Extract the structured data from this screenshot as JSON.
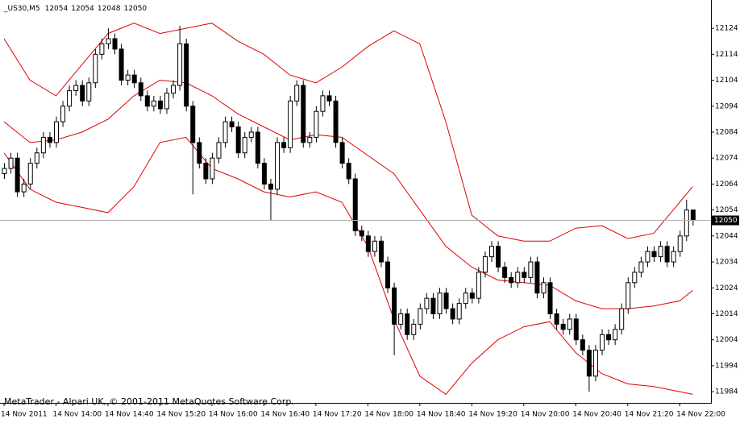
{
  "chart_data": {
    "type": "candlestick",
    "title": "_US30,M5",
    "footer": "MetaTrader - Alpari UK, © 2001-2011 MetaQuotes Software Corp.",
    "up_color": "#ffffff",
    "down_color": "#000000",
    "ylim": [
      11979.7,
      12134.9
    ],
    "yticks": [
      12124,
      12114,
      12104,
      12094,
      12084,
      12074,
      12064,
      12054,
      12044,
      12034,
      12024,
      12014,
      12004,
      11994,
      11984
    ],
    "categories": [
      "14 Nov 2011",
      null,
      null,
      null,
      null,
      null,
      null,
      null,
      "14 Nov 14:00",
      null,
      null,
      null,
      null,
      null,
      null,
      null,
      "14 Nov 14:40",
      null,
      null,
      null,
      null,
      null,
      null,
      null,
      "14 Nov 15:20",
      null,
      null,
      null,
      null,
      null,
      null,
      null,
      "14 Nov 16:00",
      null,
      null,
      null,
      null,
      null,
      null,
      null,
      "14 Nov 16:40",
      null,
      null,
      null,
      null,
      null,
      null,
      null,
      "14 Nov 17:20",
      null,
      null,
      null,
      null,
      null,
      null,
      null,
      "14 Nov 18:00",
      null,
      null,
      null,
      null,
      null,
      null,
      null,
      "14 Nov 18:40",
      null,
      null,
      null,
      null,
      null,
      null,
      null,
      "14 Nov 19:20",
      null,
      null,
      null,
      null,
      null,
      null,
      null,
      "14 Nov 20:00",
      null,
      null,
      null,
      null,
      null,
      null,
      null,
      "14 Nov 20:40",
      null,
      null,
      null,
      null,
      null,
      null,
      null,
      "14 Nov 21:20",
      null,
      null,
      null,
      null,
      null,
      null,
      null,
      "14 Nov 22:00",
      null,
      null
    ],
    "open": [
      12068,
      12070,
      12074,
      12061,
      12064,
      12072,
      12076,
      12082,
      12080,
      12088,
      12094,
      12100,
      12102,
      12096,
      12103,
      12114,
      12118,
      12120,
      12116,
      12104,
      12106,
      12103,
      12098,
      12094,
      12096,
      12093,
      12099,
      12102,
      12118,
      12094,
      12080,
      12072,
      12066,
      12074,
      12080,
      12088,
      12086,
      12076,
      12082,
      12084,
      12072,
      12064,
      12062,
      12080,
      12078,
      12096,
      12102,
      12080,
      12082,
      12092,
      12098,
      12096,
      12080,
      12072,
      12066,
      12046,
      12044,
      12038,
      12042,
      12034,
      12024,
      12010,
      12014,
      12006,
      12010,
      12016,
      12020,
      12014,
      12022,
      12016,
      12012,
      12018,
      12022,
      12020,
      12030,
      12036,
      12040,
      12032,
      12028,
      12026,
      12030,
      12028,
      12034,
      12022,
      12026,
      12014,
      12010,
      12008,
      12012,
      12004,
      12000,
      11990,
      12000,
      12006,
      12004,
      12008,
      12016,
      12026,
      12030,
      12034,
      12038,
      12036,
      12040,
      12034,
      12038,
      12044,
      12054
    ],
    "high": [
      12072,
      12076,
      12076,
      12066,
      12074,
      12078,
      12084,
      12084,
      12090,
      12096,
      12102,
      12104,
      12104,
      12105,
      12116,
      12120,
      12124,
      12122,
      12118,
      12108,
      12108,
      12105,
      12100,
      12098,
      12098,
      12101,
      12104,
      12125,
      12120,
      12096,
      12082,
      12074,
      12076,
      12082,
      12090,
      12090,
      12088,
      12084,
      12086,
      12086,
      12074,
      12066,
      12082,
      12082,
      12098,
      12104,
      12104,
      12084,
      12094,
      12100,
      12100,
      12098,
      12082,
      12074,
      12068,
      12048,
      12046,
      12044,
      12044,
      12036,
      12026,
      12016,
      12016,
      12012,
      12018,
      12022,
      12022,
      12024,
      12024,
      12018,
      12020,
      12024,
      12024,
      12032,
      12038,
      12042,
      12042,
      12034,
      12030,
      12032,
      12032,
      12036,
      12036,
      12028,
      12028,
      12016,
      12012,
      12014,
      12014,
      12006,
      12002,
      12002,
      12008,
      12008,
      12010,
      12018,
      12028,
      12032,
      12036,
      12040,
      12040,
      12042,
      12042,
      12040,
      12046,
      12058,
      12054
    ],
    "low": [
      12066,
      12068,
      12059,
      12059,
      12062,
      12070,
      12074,
      12078,
      12078,
      12086,
      12092,
      12098,
      12094,
      12094,
      12101,
      12112,
      12116,
      12114,
      12102,
      12102,
      12101,
      12096,
      12092,
      12092,
      12091,
      12091,
      12097,
      12100,
      12092,
      12060,
      12070,
      12064,
      12064,
      12072,
      12078,
      12084,
      12074,
      12074,
      12080,
      12070,
      12062,
      12050,
      12060,
      12076,
      12076,
      12094,
      12078,
      12078,
      12080,
      12090,
      12094,
      12078,
      12070,
      12064,
      12044,
      12042,
      12036,
      12036,
      12032,
      12022,
      11998,
      12008,
      12004,
      12004,
      12008,
      12014,
      12012,
      12012,
      12014,
      12010,
      12010,
      12016,
      12018,
      12018,
      12028,
      12034,
      12030,
      12026,
      12024,
      12024,
      12026,
      12026,
      12020,
      12020,
      12012,
      12008,
      12006,
      12006,
      12002,
      11998,
      11984,
      11988,
      11998,
      12002,
      12002,
      12006,
      12014,
      12024,
      12028,
      12032,
      12034,
      12034,
      12032,
      12032,
      12036,
      12042,
      12048
    ],
    "close": [
      12070,
      12074,
      12061,
      12064,
      12072,
      12076,
      12082,
      12080,
      12088,
      12094,
      12100,
      12102,
      12096,
      12103,
      12114,
      12118,
      12120,
      12116,
      12104,
      12106,
      12103,
      12098,
      12094,
      12096,
      12093,
      12099,
      12102,
      12118,
      12094,
      12080,
      12072,
      12066,
      12074,
      12080,
      12088,
      12086,
      12076,
      12082,
      12084,
      12072,
      12064,
      12062,
      12080,
      12078,
      12096,
      12102,
      12080,
      12082,
      12092,
      12098,
      12096,
      12080,
      12072,
      12066,
      12046,
      12044,
      12038,
      12042,
      12034,
      12024,
      12010,
      12014,
      12006,
      12010,
      12016,
      12020,
      12014,
      12022,
      12016,
      12012,
      12018,
      12022,
      12020,
      12030,
      12036,
      12040,
      12032,
      12028,
      12026,
      12030,
      12028,
      12034,
      12022,
      12026,
      12014,
      12010,
      12008,
      12012,
      12004,
      12000,
      11990,
      12000,
      12006,
      12004,
      12008,
      12016,
      12026,
      12030,
      12034,
      12038,
      12036,
      12040,
      12034,
      12038,
      12044,
      12054,
      12050
    ],
    "bands": [
      {
        "color": "#e00000",
        "x": [
          0,
          4,
          8,
          12,
          16,
          20,
          24,
          28,
          32,
          36,
          40,
          44,
          48,
          52,
          56,
          60,
          64,
          68,
          72,
          76,
          80,
          84,
          88,
          92,
          96,
          100,
          104,
          106
        ],
        "values": [
          12120,
          12104,
          12098,
          12110,
          12122,
          12126,
          12122,
          12124,
          12126,
          12119,
          12114,
          12106,
          12103,
          12109,
          12117,
          12123,
          12118,
          12088,
          12052,
          12044,
          12042,
          12042,
          12047,
          12048,
          12043,
          12045,
          12057,
          12063
        ]
      },
      {
        "color": "#e00000",
        "x": [
          0,
          4,
          8,
          12,
          16,
          20,
          24,
          28,
          32,
          36,
          40,
          44,
          48,
          52,
          56,
          60,
          64,
          68,
          72,
          76,
          80,
          84,
          88,
          92,
          96,
          100,
          104,
          106
        ],
        "values": [
          12088,
          12080,
          12081,
          12084,
          12089,
          12098,
          12104,
          12103,
          12098,
          12091,
          12086,
          12081,
          12083,
          12082,
          12075,
          12068,
          12054,
          12040,
          12032,
          12027,
          12026,
          12025,
          12019,
          12016,
          12016,
          12017,
          12019,
          12023
        ]
      },
      {
        "color": "#e00000",
        "x": [
          0,
          4,
          8,
          12,
          16,
          20,
          24,
          28,
          32,
          36,
          40,
          44,
          48,
          52,
          56,
          60,
          64,
          68,
          72,
          76,
          80,
          84,
          88,
          92,
          96,
          100,
          104,
          106
        ],
        "values": [
          12076,
          12062,
          12057,
          12055,
          12053,
          12063,
          12080,
          12082,
          12070,
          12066,
          12061,
          12059,
          12061,
          12057,
          12040,
          12012,
          11990,
          11983,
          11995,
          12004,
          12009,
          12011,
          11999,
          11991,
          11987,
          11986,
          11984,
          11983
        ]
      }
    ]
  }
}
